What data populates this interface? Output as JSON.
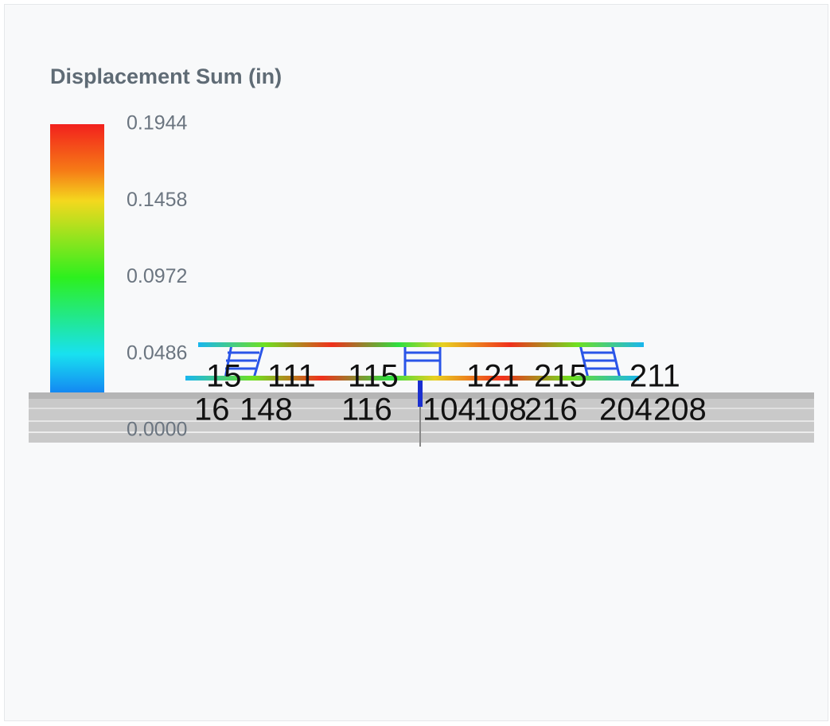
{
  "legend": {
    "title": "Displacement Sum (in)",
    "labels": [
      "0.1944",
      "0.1458",
      "0.0972",
      "0.0486",
      "0.0000"
    ]
  },
  "nodes": [
    {
      "label": "15"
    },
    {
      "label": "111"
    },
    {
      "label": "115"
    },
    {
      "label": "121"
    },
    {
      "label": "215"
    },
    {
      "label": "211"
    },
    {
      "label": "16"
    },
    {
      "label": "148"
    },
    {
      "label": "116"
    },
    {
      "label": "104"
    },
    {
      "label": "108"
    },
    {
      "label": "216"
    },
    {
      "label": "204"
    },
    {
      "label": "208"
    }
  ]
}
